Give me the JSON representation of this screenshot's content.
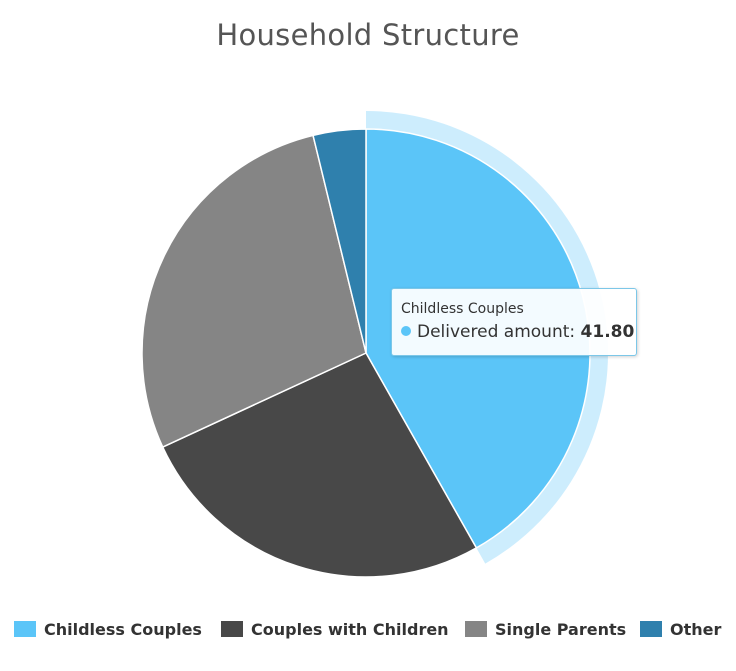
{
  "chart_data": {
    "type": "pie",
    "title": "Household Structure",
    "series_name": "Delivered amount",
    "slices": [
      {
        "label": "Childless Couples",
        "value": 41.8,
        "color": "#5bc5f8",
        "highlighted": true
      },
      {
        "label": "Couples with Children",
        "value": 26.3,
        "color": "#484848"
      },
      {
        "label": "Single Parents",
        "value": 28.1,
        "color": "#858585"
      },
      {
        "label": "Other",
        "value": 3.8,
        "color": "#2f80ad"
      }
    ],
    "legend_position": "bottom",
    "tooltip": {
      "title": "Childless Couples",
      "series": "Delivered amount",
      "separator": ":",
      "value": "41.80"
    }
  }
}
